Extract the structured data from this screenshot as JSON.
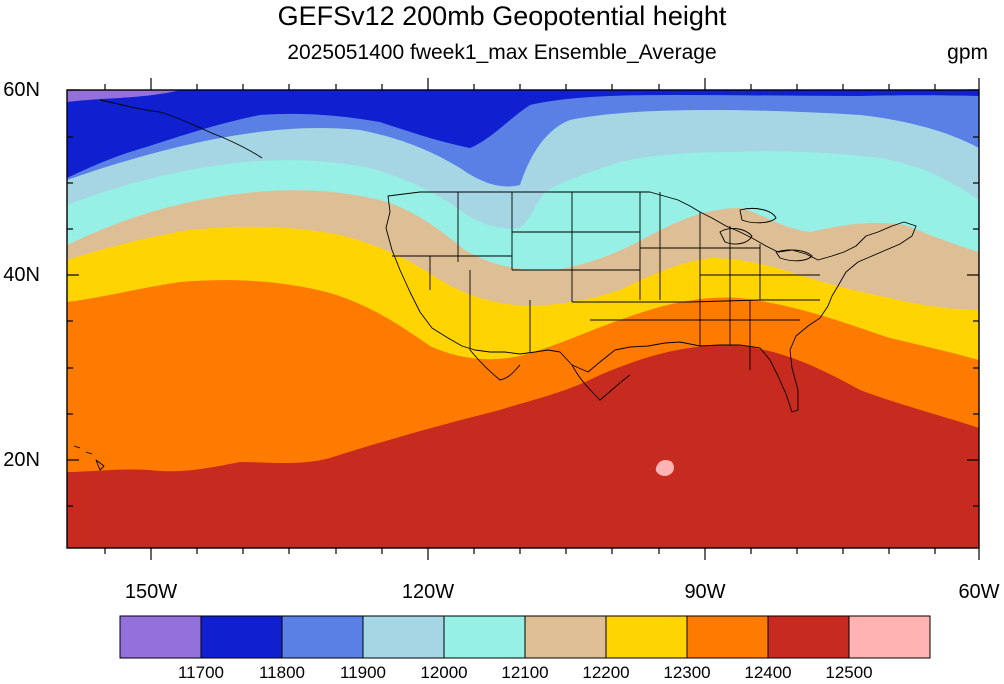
{
  "title": "GEFSv12 200mb Geopotential height",
  "subtitle": "2025051400 fweek1_max Ensemble_Average",
  "units": "gpm",
  "lat_labels": [
    "60N",
    "40N",
    "20N"
  ],
  "lon_labels": [
    "150W",
    "120W",
    "90W",
    "60W"
  ],
  "colorbar": {
    "colors": [
      "#9370db",
      "#1020d0",
      "#5a80e6",
      "#a6d6e4",
      "#96f0e6",
      "#deBf95",
      "#ffd400",
      "#ff7b00",
      "#c72a1e",
      "#ffb3b3"
    ],
    "labels": [
      "11700",
      "11800",
      "11900",
      "12000",
      "12100",
      "12200",
      "12300",
      "12400",
      "12500"
    ]
  },
  "fill_colors": {
    "c11700": "#9370db",
    "c11800": "#1020d0",
    "c11900": "#5a80e6",
    "c12000": "#a6d6e4",
    "c12100": "#96f0e6",
    "c12200": "#deBf95",
    "c12300": "#ffd400",
    "c12400": "#ff7b00",
    "c12500": "#c72a1e",
    "c12600": "#ffb3b3"
  }
}
